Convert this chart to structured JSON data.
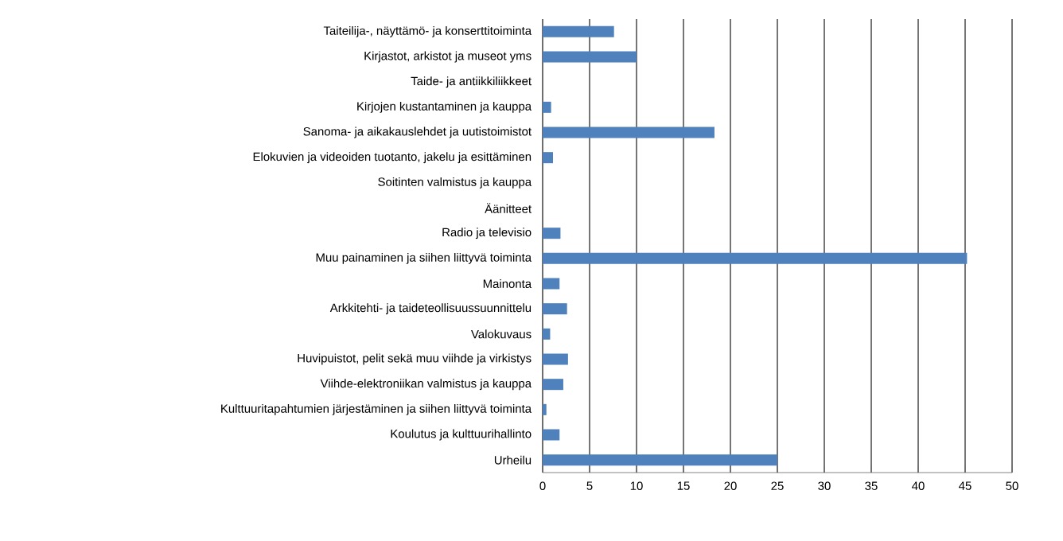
{
  "chart_data": {
    "type": "bar",
    "orientation": "horizontal",
    "categories": [
      "Taiteilija-, näyttämö- ja konserttitoiminta",
      "Kirjastot, arkistot ja museot yms",
      "Taide- ja antiikkiliikkeet",
      "Kirjojen kustantaminen ja kauppa",
      "Sanoma- ja aikakauslehdet ja uutistoimistot",
      "Elokuvien ja videoiden tuotanto, jakelu ja esittäminen",
      "Soitinten valmistus ja kauppa",
      "Äänitteet",
      "Radio ja televisio",
      "Muu painaminen ja siihen liittyvä toiminta",
      "Mainonta",
      "Arkkitehti- ja taideteollisuussuunnittelu",
      "Valokuvaus",
      "Huvipuistot, pelit sekä muu viihde ja virkistys",
      "Viihde-elektroniikan valmistus ja kauppa",
      "Kulttuuritapahtumien järjestäminen ja siihen liittyvä toiminta",
      "Koulutus ja kulttuurihallinto",
      "Urheilu"
    ],
    "values": [
      7.6,
      10,
      0,
      0.9,
      18.3,
      1.1,
      0,
      0,
      1.9,
      45.2,
      1.8,
      2.6,
      0.8,
      2.7,
      2.2,
      0.4,
      1.8,
      25
    ],
    "color": "#4f81bd",
    "xlim": [
      0,
      50
    ],
    "xticks": [
      0,
      5,
      10,
      15,
      20,
      25,
      30,
      35,
      40,
      45,
      50
    ],
    "grid": "x"
  }
}
